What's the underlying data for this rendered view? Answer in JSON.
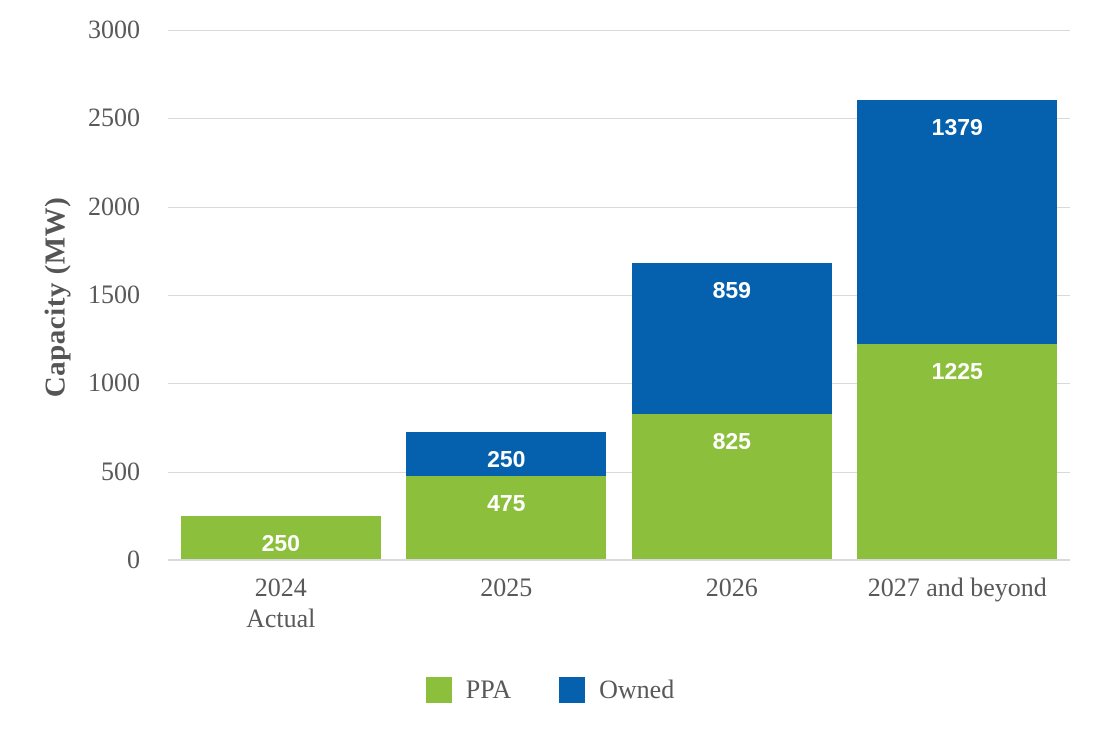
{
  "chart_data": {
    "type": "bar",
    "stacked": true,
    "title": "",
    "ylabel": "Capacity (MW)",
    "xlabel": "",
    "ylim": [
      0,
      3000
    ],
    "yticks": [
      0,
      500,
      1000,
      1500,
      2000,
      2500,
      3000
    ],
    "categories": [
      "2024 Actual",
      "2025",
      "2026",
      "2027 and beyond"
    ],
    "category_lines": [
      [
        "2024",
        "Actual"
      ],
      [
        "2025"
      ],
      [
        "2026"
      ],
      [
        "2027 and beyond"
      ]
    ],
    "series": [
      {
        "name": "PPA",
        "color": "#8CBF3C",
        "values": [
          250,
          475,
          825,
          1225
        ]
      },
      {
        "name": "Owned",
        "color": "#0561AE",
        "values": [
          0,
          250,
          859,
          1379
        ]
      }
    ],
    "totals": [
      250,
      725,
      1684,
      2604
    ],
    "data_label_color": "#FFFFFF",
    "legend": {
      "position": "bottom",
      "entries": [
        "PPA",
        "Owned"
      ]
    },
    "grid": true,
    "gridline_color": "#D9D9D9",
    "axis_text_color": "#595959",
    "background": "#FFFFFF"
  }
}
